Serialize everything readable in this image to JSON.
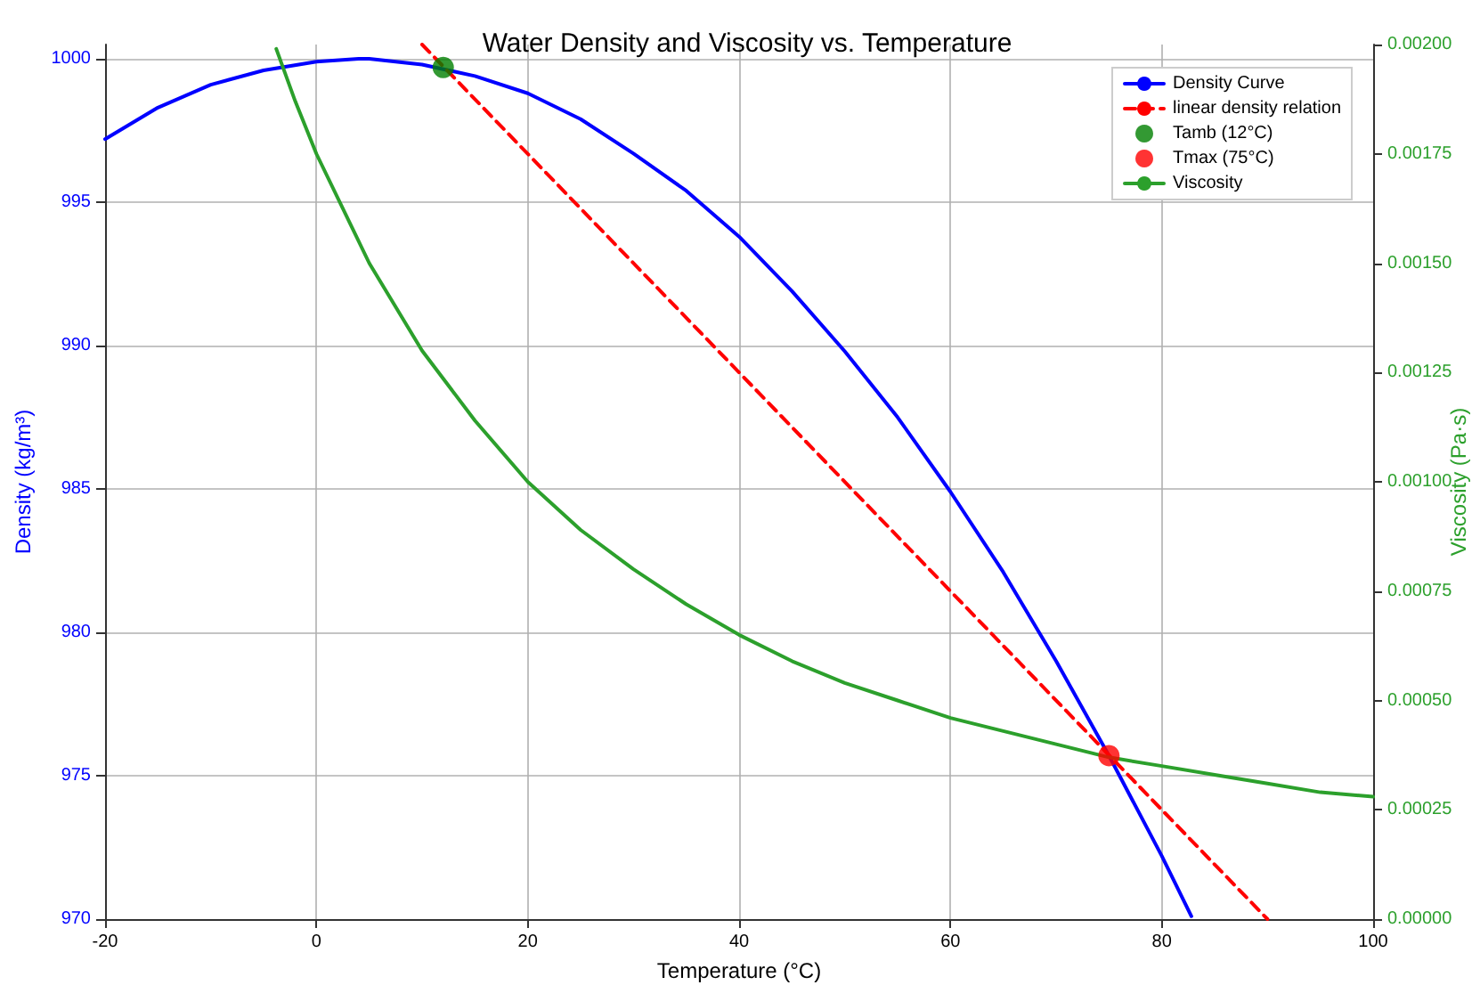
{
  "chart_data": {
    "type": "line",
    "title": "Water Density and Viscosity vs. Temperature",
    "xlabel": "Temperature (°C)",
    "ylabel": "Density (kg/m³)",
    "y2label": "Viscosity (Pa·s)",
    "xlim": [
      -20,
      100
    ],
    "xticks": [
      -20,
      0,
      20,
      40,
      60,
      80,
      100
    ],
    "ylim": [
      970,
      1000.5
    ],
    "yticks": [
      970,
      975,
      980,
      985,
      990,
      995,
      1000
    ],
    "y2lim": [
      0,
      0.002
    ],
    "y2ticks": [
      {
        "value": 0,
        "label": "0.00000"
      },
      {
        "value": 0.00025,
        "label": "0.00025"
      },
      {
        "value": 0.0005,
        "label": "0.00050"
      },
      {
        "value": 0.00075,
        "label": "0.00075"
      },
      {
        "value": 0.001,
        "label": "0.00100"
      },
      {
        "value": 0.00125,
        "label": "0.00125"
      },
      {
        "value": 0.0015,
        "label": "0.00150"
      },
      {
        "value": 0.00175,
        "label": "0.00175"
      },
      {
        "value": 0.002,
        "label": "0.00200"
      }
    ],
    "grid": true,
    "legend": "top right",
    "series": [
      {
        "name": "Density Curve",
        "type": "line",
        "color": "#0000ff",
        "line_style": "solid",
        "x": [
          -20,
          -15,
          -10,
          -5,
          0,
          4,
          5,
          10,
          15,
          20,
          25,
          30,
          35,
          40,
          45,
          50,
          55,
          60,
          65,
          70,
          75,
          80,
          82.8
        ],
        "values": [
          997.2,
          998.3,
          999.1,
          999.6,
          999.9,
          1000.0,
          1000.0,
          999.8,
          999.4,
          998.8,
          997.9,
          996.7,
          995.4,
          993.8,
          991.9,
          989.8,
          987.5,
          984.9,
          982.1,
          979.0,
          975.7,
          972.2,
          970.1
        ]
      },
      {
        "name": "linear density relation",
        "type": "line",
        "color": "#ff0000",
        "line_style": "dashed",
        "x": [
          10,
          90
        ],
        "values": [
          1000.5,
          970.0
        ]
      },
      {
        "name": "Tamb (12°C)",
        "type": "scatter",
        "color": "#008000",
        "marker": "circle",
        "x": [
          12
        ],
        "values": [
          999.7
        ]
      },
      {
        "name": "Tmax (75°C)",
        "type": "scatter",
        "color": "#ff0000",
        "marker": "circle",
        "x": [
          75
        ],
        "values": [
          975.7
        ]
      },
      {
        "name": "Viscosity",
        "type": "line",
        "axis": "y2",
        "color": "#2ca02c",
        "line_style": "solid",
        "x": [
          -3.8,
          -2,
          0,
          5,
          10,
          15,
          20,
          25,
          30,
          35,
          40,
          45,
          50,
          55,
          60,
          65,
          70,
          75,
          80,
          85,
          90,
          95,
          100
        ],
        "values": [
          0.00199,
          0.00187,
          0.00175,
          0.0015,
          0.0013,
          0.00114,
          0.001,
          0.00089,
          0.0008,
          0.00072,
          0.00065,
          0.00059,
          0.00054,
          0.0005,
          0.00046,
          0.00043,
          0.0004,
          0.00037,
          0.00035,
          0.00033,
          0.00031,
          0.00029,
          0.00028
        ]
      }
    ]
  }
}
